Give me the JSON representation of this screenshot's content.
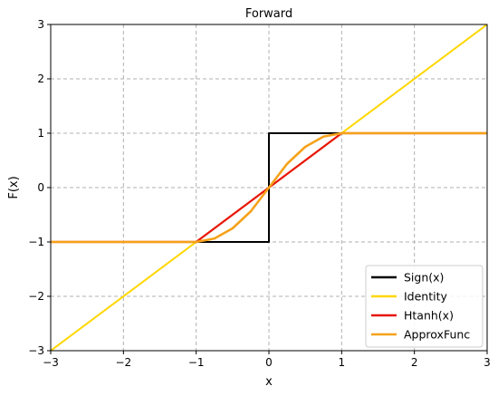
{
  "chart_data": {
    "type": "line",
    "title": "Forward",
    "xlabel": "x",
    "ylabel": "F(x)",
    "xlim": [
      -3,
      3
    ],
    "ylim": [
      -3,
      3
    ],
    "xticks": [
      -3,
      -2,
      -1,
      0,
      1,
      2,
      3
    ],
    "yticks": [
      -3,
      -2,
      -1,
      0,
      1,
      2,
      3
    ],
    "xtick_labels": [
      "−3",
      "−2",
      "−1",
      "0",
      "1",
      "2",
      "3"
    ],
    "ytick_labels": [
      "−3",
      "−2",
      "−1",
      "0",
      "1",
      "2",
      "3"
    ],
    "grid": true,
    "legend_position": "lower-right",
    "series": [
      {
        "name": "Sign(x)",
        "color": "#000000",
        "x": [
          -3,
          0,
          0,
          3
        ],
        "y": [
          -1,
          -1,
          1,
          1
        ]
      },
      {
        "name": "Identity",
        "color": "#FFD700",
        "x": [
          -3,
          3
        ],
        "y": [
          -3,
          3
        ]
      },
      {
        "name": "Htanh(x)",
        "color": "#E8150C",
        "x": [
          -3,
          -1,
          1,
          3
        ],
        "y": [
          -1,
          -1,
          1,
          1
        ]
      },
      {
        "name": "ApproxFunc",
        "color": "#F5A21A",
        "x": [
          -3,
          -1,
          -0.75,
          -0.5,
          -0.25,
          0,
          0.25,
          0.5,
          0.75,
          1,
          3
        ],
        "y": [
          -1,
          -1,
          -0.9375,
          -0.75,
          -0.4375,
          0,
          0.4375,
          0.75,
          0.9375,
          1,
          1
        ]
      }
    ]
  }
}
